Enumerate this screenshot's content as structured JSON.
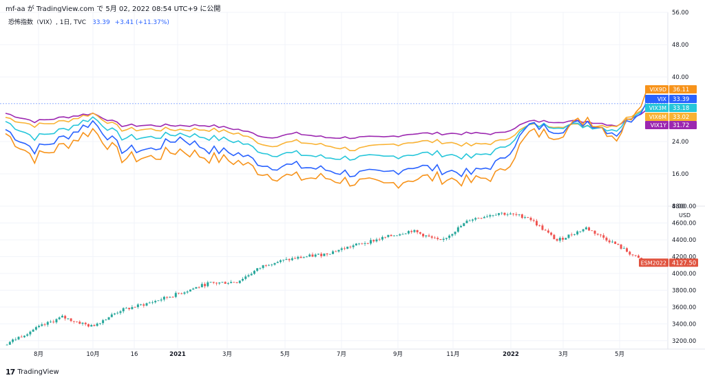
{
  "header": {
    "text": "mf-aa が TradingView.com で 5月 02, 2022 08:54 UTC+9 に公開"
  },
  "legend": {
    "name": "恐怖指数（VIX）, 1日, TVC",
    "last": "33.39",
    "change": "+3.41 (+11.37%)"
  },
  "footer": {
    "brand": "TradingView",
    "logo_mark": "17"
  },
  "upper_pane": {
    "y_ticks": [
      "56.00",
      "48.00",
      "40.00",
      "24.00",
      "16.00",
      "8.00"
    ],
    "last_value_tags": [
      {
        "label": "VIX9D",
        "value": "36.11",
        "color": "#f7931a"
      },
      {
        "label": "VIX",
        "value": "33.39",
        "color": "#2962ff"
      },
      {
        "label": "VIX3M",
        "value": "33.18",
        "color": "#26c6da"
      },
      {
        "label": "VIX6M",
        "value": "33.02",
        "color": "#f9b233"
      },
      {
        "label": "VIX1Y",
        "value": "31.72",
        "color": "#9c27b0"
      }
    ]
  },
  "lower_pane": {
    "unit": "USD",
    "y_ticks": [
      "4800.00",
      "4600.00",
      "4400.00",
      "4200.00",
      "4000.00",
      "3800.00",
      "3600.00",
      "3400.00",
      "3200.00"
    ],
    "last_tag": {
      "label": "ESM2022",
      "value": "4127.50",
      "color": "#e0533f"
    }
  },
  "x_axis_labels": [
    "8月",
    "10月",
    "16",
    "2021",
    "3月",
    "5月",
    "7月",
    "9月",
    "11月",
    "2022",
    "3月",
    "5月"
  ],
  "chart_data": [
    {
      "type": "line",
      "y_axis": [
        8,
        56
      ],
      "x": [
        "2020-07",
        "2020-08",
        "2020-09",
        "2020-10",
        "2020-11",
        "2020-12",
        "2021-01",
        "2021-02",
        "2021-03",
        "2021-04",
        "2021-05",
        "2021-06",
        "2021-07",
        "2021-08",
        "2021-09",
        "2021-10",
        "2021-11",
        "2021-12",
        "2022-01",
        "2022-02",
        "2022-03",
        "2022-04",
        "2022-05"
      ],
      "series": [
        {
          "name": "VIX9D",
          "color": "#f7931a",
          "values": [
            26,
            20,
            23,
            27,
            20,
            20,
            22,
            20,
            19,
            16,
            15,
            15,
            14,
            13,
            15,
            15,
            14,
            16,
            26,
            26,
            30,
            25,
            36.11
          ]
        },
        {
          "name": "VIX",
          "color": "#2962ff",
          "values": [
            27,
            22,
            25,
            29,
            22,
            22,
            25,
            22,
            21,
            18,
            18,
            17,
            16,
            16,
            18,
            17,
            16,
            19,
            28,
            27,
            29,
            26,
            33.39
          ]
        },
        {
          "name": "VIX3M",
          "color": "#26c6da",
          "values": [
            29,
            25,
            27,
            30,
            25,
            25,
            26,
            25,
            24,
            21,
            21,
            20,
            20,
            20,
            21,
            21,
            20,
            22,
            28,
            28,
            28,
            27,
            33.18
          ]
        },
        {
          "name": "VIX6M",
          "color": "#f9b233",
          "values": [
            30,
            28,
            29,
            31,
            27,
            27,
            27,
            27,
            26,
            23,
            24,
            23,
            22,
            23,
            24,
            24,
            23,
            24,
            28,
            28,
            28,
            28,
            33.02
          ]
        },
        {
          "name": "VIX1Y",
          "color": "#9c27b0",
          "values": [
            31,
            29,
            30,
            31,
            28,
            28,
            28,
            28,
            27,
            25,
            26,
            25,
            25,
            25,
            26,
            26,
            26,
            26,
            29,
            29,
            29,
            28,
            31.72
          ]
        }
      ]
    },
    {
      "type": "line",
      "style": "candlestick",
      "y_axis": [
        3100,
        4800
      ],
      "x": [
        "2020-07",
        "2020-08",
        "2020-09",
        "2020-10",
        "2020-11",
        "2020-12",
        "2021-01",
        "2021-02",
        "2021-03",
        "2021-04",
        "2021-05",
        "2021-06",
        "2021-07",
        "2021-08",
        "2021-09",
        "2021-10",
        "2021-11",
        "2021-12",
        "2022-01",
        "2022-02",
        "2022-03",
        "2022-04",
        "2022-05"
      ],
      "series": [
        {
          "name": "ESM2022",
          "color": "#26a69a",
          "down_color": "#ef5350",
          "values": [
            3150,
            3330,
            3480,
            3370,
            3560,
            3650,
            3760,
            3880,
            3900,
            4110,
            4180,
            4230,
            4330,
            4420,
            4510,
            4380,
            4640,
            4720,
            4670,
            4390,
            4540,
            4350,
            4127.5
          ]
        }
      ]
    }
  ]
}
